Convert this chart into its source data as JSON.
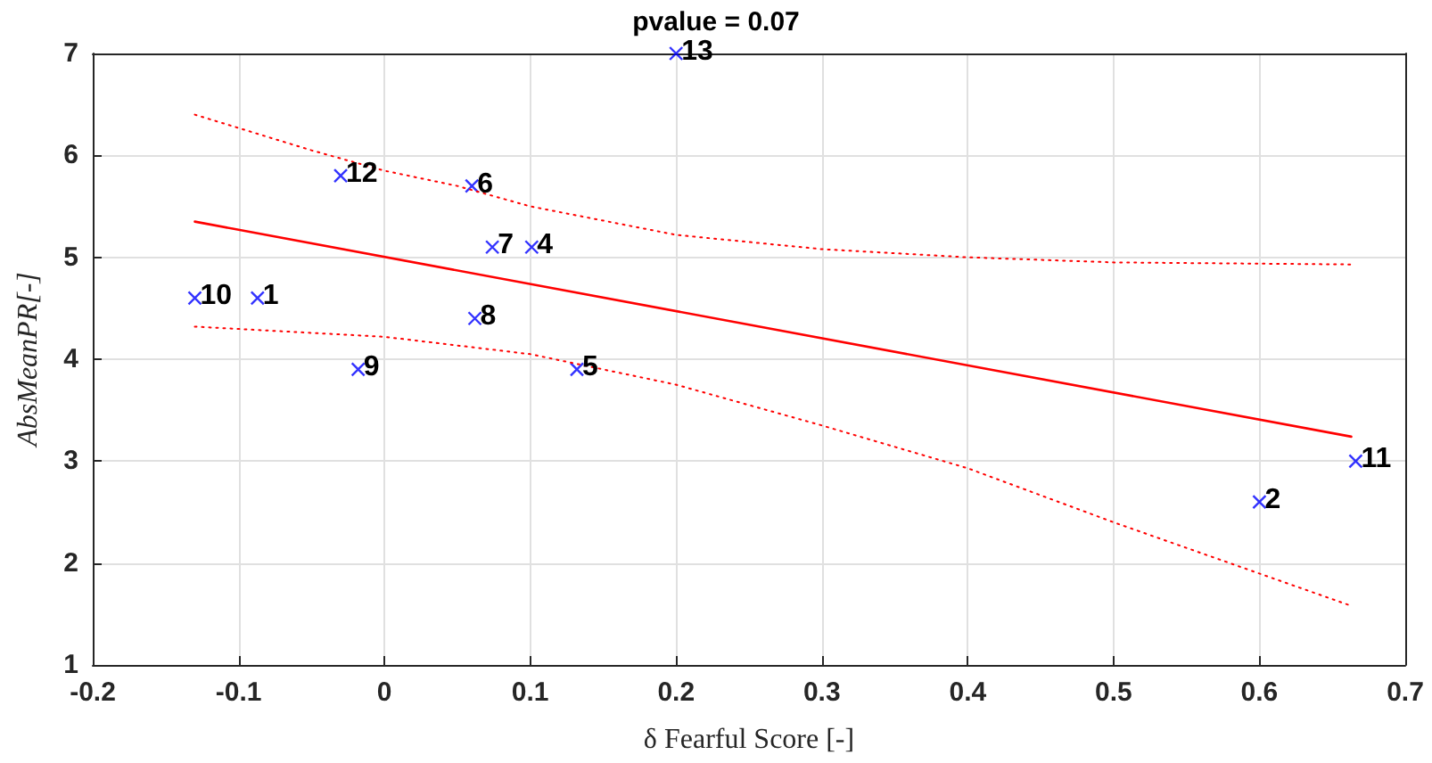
{
  "chart_data": {
    "type": "scatter",
    "title": "pvalue = 0.07",
    "xlabel": "δ Fearful Score [-]",
    "ylabel": "AbsMeanPR[-]",
    "xlim": [
      -0.2,
      0.7
    ],
    "xticks": [
      -0.2,
      -0.1,
      0,
      0.1,
      0.2,
      0.3,
      0.4,
      0.5,
      0.6,
      0.7
    ],
    "ylim": [
      1,
      7
    ],
    "yticks": [
      1,
      2,
      3,
      4,
      5,
      6,
      7
    ],
    "grid": true,
    "legend": false,
    "annotations": [
      {
        "text": "1",
        "x": -0.087,
        "y": 4.6
      },
      {
        "text": "2",
        "x": 0.6,
        "y": 2.6
      },
      {
        "text": "4",
        "x": 0.101,
        "y": 5.1
      },
      {
        "text": "5",
        "x": 0.132,
        "y": 3.9
      },
      {
        "text": "6",
        "x": 0.06,
        "y": 5.7
      },
      {
        "text": "7",
        "x": 0.074,
        "y": 5.1
      },
      {
        "text": "8",
        "x": 0.062,
        "y": 4.4
      },
      {
        "text": "9",
        "x": -0.018,
        "y": 3.9
      },
      {
        "text": "10",
        "x": -0.13,
        "y": 4.6
      },
      {
        "text": "11",
        "x": 0.666,
        "y": 3.0
      },
      {
        "text": "12",
        "x": -0.03,
        "y": 5.8
      },
      {
        "text": "13",
        "x": 0.2,
        "y": 7.0
      }
    ],
    "series": [
      {
        "color": "#0000ff",
        "marker": "cross",
        "x": [
          -0.087,
          0.6,
          0.101,
          0.132,
          0.06,
          0.074,
          0.062,
          -0.018,
          -0.13,
          0.666,
          -0.03,
          0.2
        ],
        "values": [
          4.6,
          2.6,
          5.1,
          3.9,
          5.7,
          5.1,
          4.4,
          3.9,
          4.6,
          3.0,
          5.8,
          7.0
        ]
      },
      {
        "type": "line",
        "color": "#ff0000",
        "marker": "none",
        "line_style": "solid",
        "x": [
          -0.13,
          0.663
        ],
        "values": [
          5.35,
          3.24
        ]
      },
      {
        "type": "line",
        "color": "#ff0000",
        "marker": "none",
        "line_style": "dotted",
        "x": [
          -0.13,
          -0.05,
          0,
          0.05,
          0.1,
          0.2,
          0.3,
          0.4,
          0.5,
          0.663
        ],
        "values": [
          6.4,
          6.05,
          5.85,
          5.7,
          5.5,
          5.22,
          5.08,
          5.0,
          4.95,
          4.93
        ]
      },
      {
        "type": "line",
        "color": "#ff0000",
        "marker": "none",
        "line_style": "dotted",
        "x": [
          -0.13,
          0,
          0.1,
          0.2,
          0.3,
          0.4,
          0.5,
          0.663
        ],
        "values": [
          4.32,
          4.22,
          4.05,
          3.75,
          3.35,
          2.93,
          2.4,
          1.58
        ]
      }
    ]
  }
}
